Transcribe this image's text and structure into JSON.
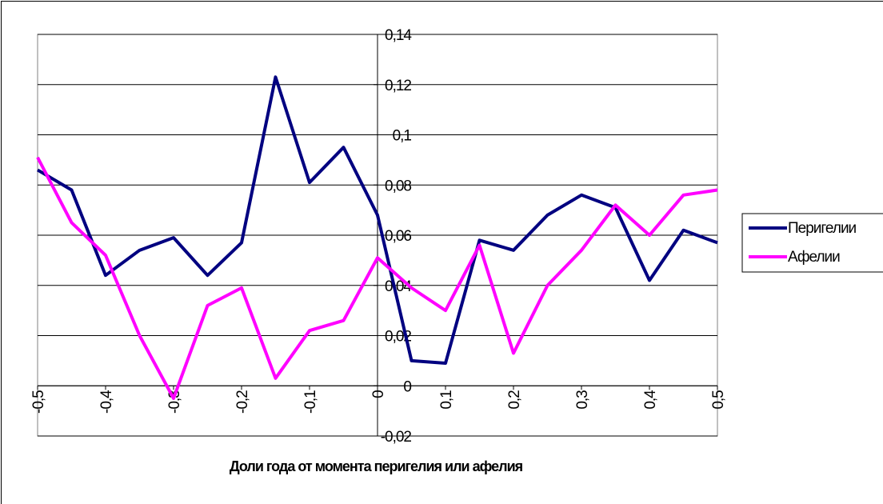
{
  "chart_data": {
    "type": "line",
    "x_label": "Доли года от момента перигелия или афелия",
    "x": [
      -0.5,
      -0.45,
      -0.4,
      -0.35,
      -0.3,
      -0.25,
      -0.2,
      -0.15,
      -0.1,
      -0.05,
      0,
      0.05,
      0.1,
      0.15,
      0.2,
      0.25,
      0.3,
      0.35,
      0.4,
      0.45,
      0.5
    ],
    "series": [
      {
        "name": "Перигелии",
        "color": "#000080",
        "values": [
          0.086,
          0.078,
          0.044,
          0.054,
          0.059,
          0.044,
          0.057,
          0.123,
          0.081,
          0.095,
          0.068,
          0.01,
          0.009,
          0.058,
          0.054,
          0.068,
          0.076,
          0.071,
          0.042,
          0.062,
          0.057
        ]
      },
      {
        "name": "Афелии",
        "color": "#ff00ff",
        "values": [
          0.091,
          0.065,
          0.052,
          0.02,
          -0.005,
          0.032,
          0.039,
          0.003,
          0.022,
          0.026,
          0.051,
          0.039,
          0.03,
          0.056,
          0.013,
          0.04,
          0.054,
          0.072,
          0.06,
          0.076,
          0.078
        ]
      }
    ],
    "xlim": [
      -0.5,
      0.5
    ],
    "xticks": [
      {
        "value": -0.5,
        "label": "-0,5"
      },
      {
        "value": -0.4,
        "label": "-0,4"
      },
      {
        "value": -0.3,
        "label": "-0,3"
      },
      {
        "value": -0.2,
        "label": "-0,2"
      },
      {
        "value": -0.1,
        "label": "-0,1"
      },
      0,
      {
        "value": 0.1,
        "label": "0,1"
      },
      {
        "value": 0.2,
        "label": "0,2"
      },
      {
        "value": 0.3,
        "label": "0,3"
      },
      {
        "value": 0.4,
        "label": "0,4"
      },
      {
        "value": 0.5,
        "label": "0,5"
      }
    ],
    "ylim": [
      -0.02,
      0.14
    ],
    "yticks": [
      {
        "value": -0.02,
        "label": "-0,02"
      },
      0,
      {
        "value": 0.02,
        "label": "0,02"
      },
      {
        "value": 0.04,
        "label": "0,04"
      },
      {
        "value": 0.06,
        "label": "0,06"
      },
      {
        "value": 0.08,
        "label": "0,08"
      },
      {
        "value": 0.1,
        "label": "0,1"
      },
      {
        "value": 0.12,
        "label": "0,12"
      },
      {
        "value": 0.14,
        "label": "0,14"
      }
    ],
    "grid": true,
    "legend": "right"
  }
}
